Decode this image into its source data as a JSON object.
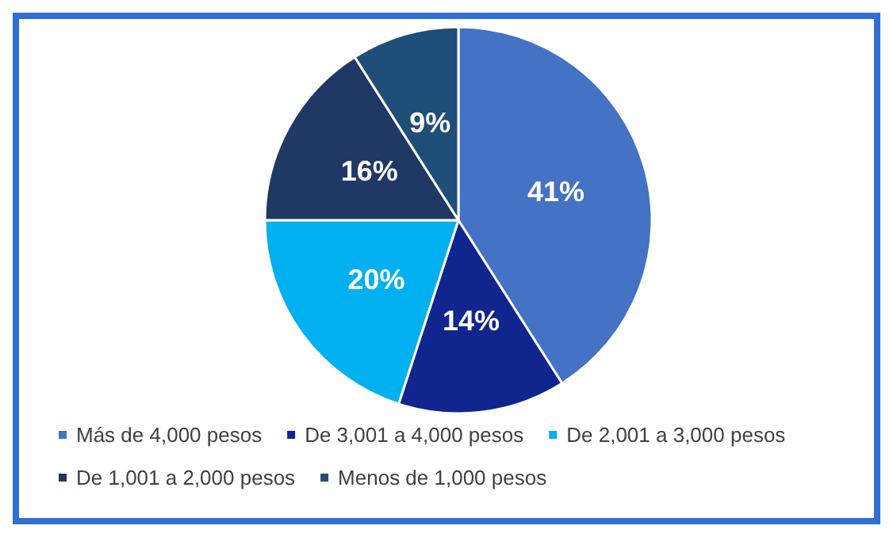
{
  "chart_data": {
    "type": "pie",
    "categories": [
      "Más de 4,000 pesos",
      "De 3,001 a 4,000 pesos",
      "De 2,001 a 3,000 pesos",
      "De 1,001 a 2,000 pesos",
      "Menos de 1,000 pesos"
    ],
    "values": [
      41,
      14,
      20,
      16,
      9
    ],
    "colors": [
      "#4472c4",
      "#10258e",
      "#00b0f0",
      "#1f3864",
      "#1f4e79"
    ],
    "value_labels": [
      "41%",
      "14%",
      "20%",
      "16%",
      "9%"
    ],
    "legend": "bottom"
  }
}
